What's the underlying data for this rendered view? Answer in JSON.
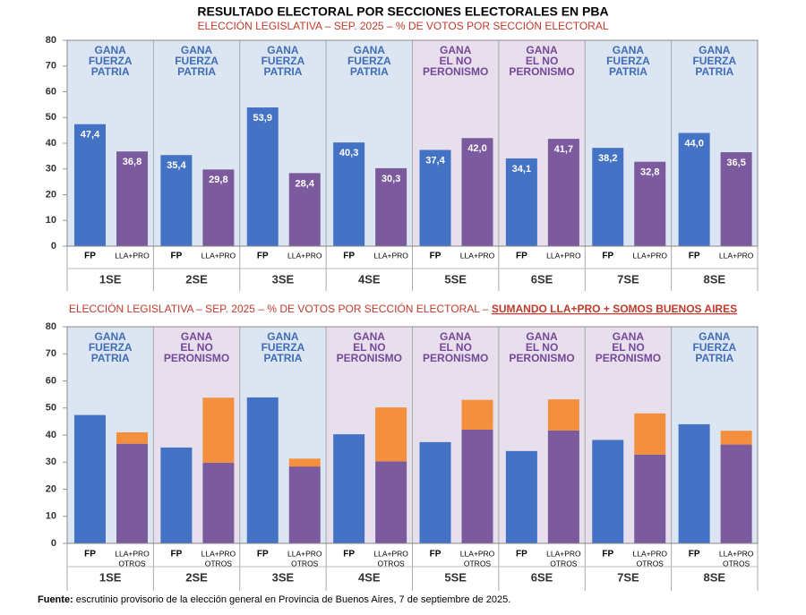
{
  "chart_data": [
    {
      "type": "bar",
      "title": "RESULTADO ELECTORAL POR SECCIONES ELECTORALES EN PBA",
      "subtitle": "ELECCIÓN LEGISLATIVA – SEP. 2025 – % DE VOTOS POR SECCIÓN ELECTORAL",
      "categories": [
        "1SE",
        "2SE",
        "3SE",
        "4SE",
        "5SE",
        "6SE",
        "7SE",
        "8SE"
      ],
      "panel_labels": [
        [
          "GANA",
          "FUERZA",
          "PATRIA"
        ],
        [
          "GANA",
          "FUERZA",
          "PATRIA"
        ],
        [
          "GANA",
          "FUERZA",
          "PATRIA"
        ],
        [
          "GANA",
          "FUERZA",
          "PATRIA"
        ],
        [
          "GANA",
          "EL NO",
          "PERONISMO"
        ],
        [
          "GANA",
          "EL NO",
          "PERONISMO"
        ],
        [
          "GANA",
          "FUERZA",
          "PATRIA"
        ],
        [
          "GANA",
          "FUERZA",
          "PATRIA"
        ]
      ],
      "panel_colors": [
        "#dce5f2",
        "#dce5f2",
        "#dce5f2",
        "#dce5f2",
        "#e7dfec",
        "#e7dfec",
        "#dce5f2",
        "#dce5f2"
      ],
      "panel_text_colors": [
        "#3f6db5",
        "#3f6db5",
        "#3f6db5",
        "#3f6db5",
        "#74489a",
        "#74489a",
        "#3f6db5",
        "#3f6db5"
      ],
      "series": [
        {
          "name": "FP",
          "color": "#4472c4",
          "values": [
            47.4,
            35.4,
            53.9,
            40.3,
            37.4,
            34.1,
            38.2,
            44.0
          ],
          "value_labels": [
            "47,4",
            "35,4",
            "53,9",
            "40,3",
            "37,4",
            "34,1",
            "38,2",
            "44,0"
          ]
        },
        {
          "name": "LLA+PRO",
          "color": "#7b5a9e",
          "values": [
            36.8,
            29.8,
            28.4,
            30.3,
            42.0,
            41.7,
            32.8,
            36.5
          ],
          "value_labels": [
            "36,8",
            "29,8",
            "28,4",
            "30,3",
            "42,0",
            "41,7",
            "32,8",
            "36,5"
          ]
        }
      ],
      "ylim": [
        0,
        80
      ],
      "yticks": [
        0,
        10,
        20,
        30,
        40,
        50,
        60,
        70,
        80
      ],
      "grid": false
    },
    {
      "type": "bar",
      "subtitle": "ELECCIÓN LEGISLATIVA – SEP. 2025 – % DE VOTOS POR SECCIÓN ELECTORAL – ",
      "subtitle_emphasis": "SUMANDO LLA+PRO + SOMOS BUENOS AIRES",
      "categories": [
        "1SE",
        "2SE",
        "3SE",
        "4SE",
        "5SE",
        "6SE",
        "7SE",
        "8SE"
      ],
      "panel_labels": [
        [
          "GANA",
          "FUERZA",
          "PATRIA"
        ],
        [
          "GANA",
          "EL NO",
          "PERONISMO"
        ],
        [
          "GANA",
          "FUERZA",
          "PATRIA"
        ],
        [
          "GANA",
          "EL NO",
          "PERONISMO"
        ],
        [
          "GANA",
          "EL NO",
          "PERONISMO"
        ],
        [
          "GANA",
          "EL NO",
          "PERONISMO"
        ],
        [
          "GANA",
          "EL NO",
          "PERONISMO"
        ],
        [
          "GANA",
          "FUERZA",
          "PATRIA"
        ]
      ],
      "panel_colors": [
        "#dce5f2",
        "#e7dfec",
        "#dce5f2",
        "#e7dfec",
        "#e7dfec",
        "#e7dfec",
        "#e7dfec",
        "#dce5f2"
      ],
      "panel_text_colors": [
        "#3f6db5",
        "#74489a",
        "#3f6db5",
        "#74489a",
        "#74489a",
        "#74489a",
        "#74489a",
        "#3f6db5"
      ],
      "series": [
        {
          "name": "FP",
          "color": "#4472c4",
          "values": [
            47.4,
            35.4,
            53.9,
            40.3,
            37.4,
            34.1,
            38.2,
            44.0
          ]
        },
        {
          "name": "LLA+PRO",
          "color": "#7b5a9e",
          "values": [
            36.8,
            29.8,
            28.4,
            30.3,
            42.0,
            41.7,
            32.8,
            36.5
          ]
        },
        {
          "name": "OTROS",
          "color": "#f38f3d",
          "stack": true,
          "values": [
            4.2,
            24.0,
            2.9,
            19.9,
            11.0,
            11.5,
            15.2,
            5.1
          ]
        }
      ],
      "ylim": [
        0,
        80
      ],
      "yticks": [
        0,
        10,
        20,
        30,
        40,
        50,
        60,
        70,
        80
      ],
      "grid": false
    }
  ],
  "source": {
    "label": "Fuente:",
    "text": " escrutinio provisorio de la elección general en Provincia de Buenos Aires, 7 de septiembre de 2025."
  }
}
